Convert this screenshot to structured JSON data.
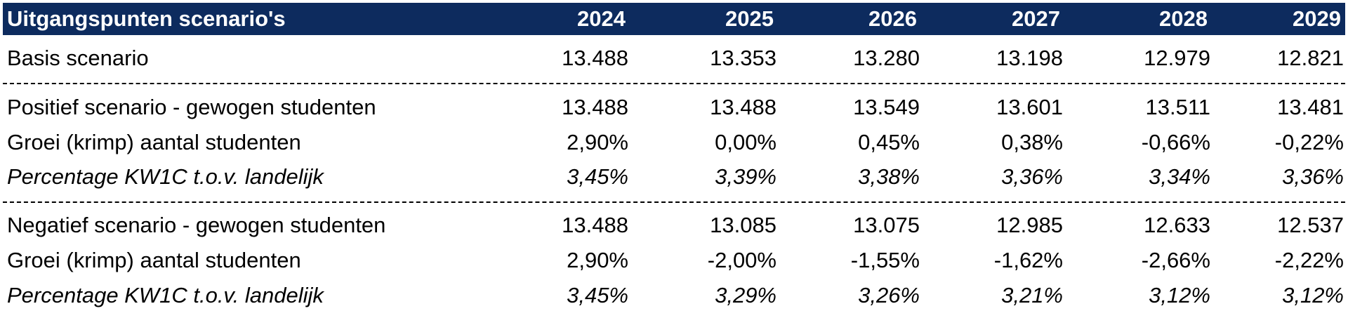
{
  "header": {
    "title": "Uitgangspunten scenario's",
    "years": [
      "2024",
      "2025",
      "2026",
      "2027",
      "2028",
      "2029"
    ]
  },
  "rows": [
    {
      "label": "Basis scenario",
      "values": [
        "13.488",
        "13.353",
        "13.280",
        "13.198",
        "12.979",
        "12.821"
      ]
    },
    {
      "label": "Positief scenario - gewogen studenten",
      "values": [
        "13.488",
        "13.488",
        "13.549",
        "13.601",
        "13.511",
        "13.481"
      ]
    },
    {
      "label": "Groei (krimp) aantal studenten",
      "values": [
        "2,90%",
        "0,00%",
        "0,45%",
        "0,38%",
        "-0,66%",
        "-0,22%"
      ]
    },
    {
      "label": "Percentage KW1C t.o.v. landelijk",
      "values": [
        "3,45%",
        "3,39%",
        "3,38%",
        "3,36%",
        "3,34%",
        "3,36%"
      ]
    },
    {
      "label": "Negatief scenario - gewogen studenten",
      "values": [
        "13.488",
        "13.085",
        "13.075",
        "12.985",
        "12.633",
        "12.537"
      ]
    },
    {
      "label": "Groei (krimp) aantal studenten",
      "values": [
        "2,90%",
        "-2,00%",
        "-1,55%",
        "-1,62%",
        "-2,66%",
        "-2,22%"
      ]
    },
    {
      "label": "Percentage KW1C t.o.v. landelijk",
      "values": [
        "3,45%",
        "3,29%",
        "3,26%",
        "3,21%",
        "3,12%",
        "3,12%"
      ]
    }
  ]
}
